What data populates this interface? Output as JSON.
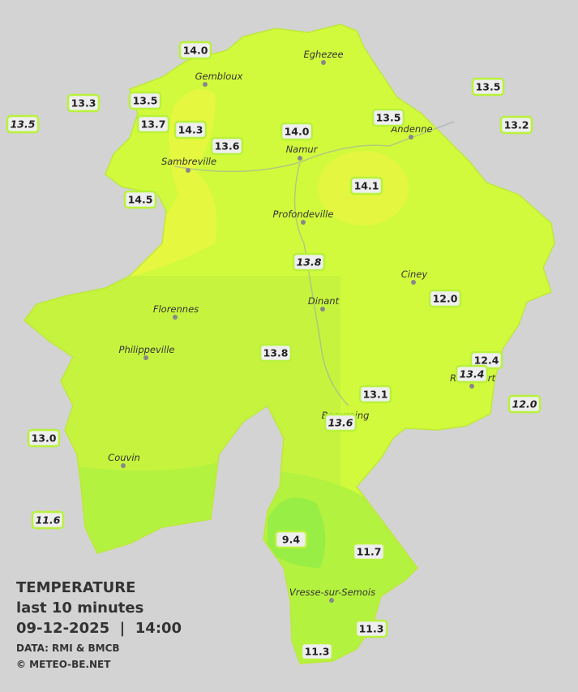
{
  "map": {
    "towns": [
      "Eghezee",
      "Gembloux",
      "Andenne",
      "Namur",
      "Sambreville",
      "Profondeville",
      "Ciney",
      "Dinant",
      "Florennes",
      "Philippeville",
      "Rochefort",
      "Beauraing",
      "Couvin",
      "Vresse-sur-Semois"
    ],
    "stations": [
      {
        "reading": "14.0",
        "italic": false
      },
      {
        "reading": "13.3",
        "italic": false
      },
      {
        "reading": "13.5",
        "italic": false
      },
      {
        "reading": "13.5",
        "italic": true
      },
      {
        "reading": "13.7",
        "italic": false
      },
      {
        "reading": "14.3",
        "italic": false
      },
      {
        "reading": "13.6",
        "italic": false
      },
      {
        "reading": "14.0",
        "italic": false
      },
      {
        "reading": "13.5",
        "italic": false
      },
      {
        "reading": "13.5",
        "italic": false
      },
      {
        "reading": "13.2",
        "italic": false
      },
      {
        "reading": "14.5",
        "italic": false
      },
      {
        "reading": "14.1",
        "italic": false
      },
      {
        "reading": "13.8",
        "italic": true
      },
      {
        "reading": "12.0",
        "italic": false
      },
      {
        "reading": "13.8",
        "italic": false
      },
      {
        "reading": "12.4",
        "italic": false
      },
      {
        "reading": "13.4",
        "italic": true
      },
      {
        "reading": "13.1",
        "italic": false
      },
      {
        "reading": "12.0",
        "italic": true
      },
      {
        "reading": "13.6",
        "italic": true
      },
      {
        "reading": "13.0",
        "italic": false
      },
      {
        "reading": "11.6",
        "italic": true
      },
      {
        "reading": "9.4",
        "italic": false
      },
      {
        "reading": "11.7",
        "italic": false
      },
      {
        "reading": "11.3",
        "italic": false
      },
      {
        "reading": "11.3",
        "italic": false
      }
    ]
  },
  "legend": {
    "title": "TEMPERATURE",
    "period": "last 10 minutes",
    "timestamp": "09-12-2025  |  14:00",
    "source": "DATA: RMI & BMCB",
    "credit": "© METEO-BE.NET"
  }
}
